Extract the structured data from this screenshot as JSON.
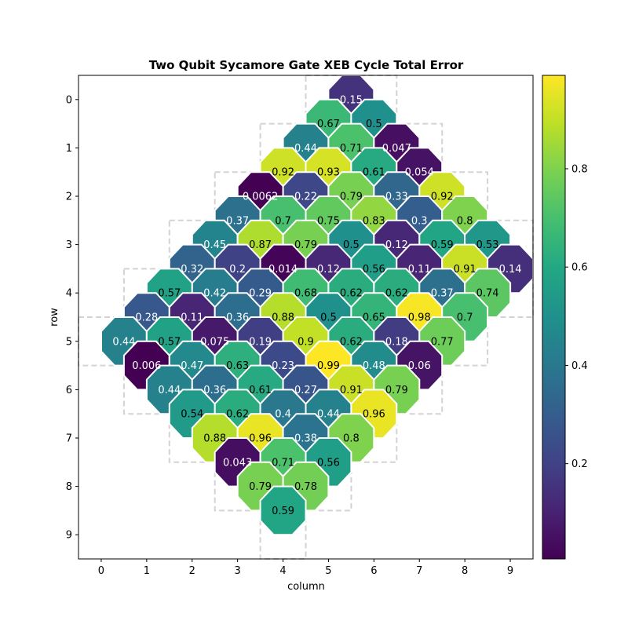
{
  "chart_data": {
    "type": "heatmap",
    "title": "Two Qubit Sycamore Gate XEB Cycle Total Error",
    "xlabel": "column",
    "ylabel": "row",
    "xlim": [
      -0.5,
      9.5
    ],
    "ylim": [
      9.5,
      -0.5
    ],
    "xticks": [
      "0",
      "1",
      "2",
      "3",
      "4",
      "5",
      "6",
      "7",
      "8",
      "9"
    ],
    "yticks": [
      "0",
      "1",
      "2",
      "3",
      "4",
      "5",
      "6",
      "7",
      "8",
      "9"
    ],
    "colormap": "viridis",
    "colorbar": {
      "range": [
        0.0062,
        0.99
      ],
      "ticks": [
        {
          "value": 0.2,
          "label": "0.2"
        },
        {
          "value": 0.4,
          "label": "0.4"
        },
        {
          "value": 0.6,
          "label": "0.6"
        },
        {
          "value": 0.8,
          "label": "0.8"
        }
      ]
    },
    "grid_outline": {
      "color": "#d3d3d3",
      "qubits": [
        [
          0,
          5
        ],
        [
          0,
          6
        ],
        [
          1,
          4
        ],
        [
          1,
          5
        ],
        [
          1,
          6
        ],
        [
          1,
          7
        ],
        [
          2,
          3
        ],
        [
          2,
          4
        ],
        [
          2,
          5
        ],
        [
          2,
          6
        ],
        [
          2,
          7
        ],
        [
          2,
          8
        ],
        [
          3,
          2
        ],
        [
          3,
          3
        ],
        [
          3,
          4
        ],
        [
          3,
          5
        ],
        [
          3,
          6
        ],
        [
          3,
          7
        ],
        [
          3,
          8
        ],
        [
          3,
          9
        ],
        [
          4,
          1
        ],
        [
          4,
          2
        ],
        [
          4,
          3
        ],
        [
          4,
          4
        ],
        [
          4,
          5
        ],
        [
          4,
          6
        ],
        [
          4,
          7
        ],
        [
          4,
          8
        ],
        [
          4,
          9
        ],
        [
          5,
          0
        ],
        [
          5,
          1
        ],
        [
          5,
          2
        ],
        [
          5,
          3
        ],
        [
          5,
          4
        ],
        [
          5,
          5
        ],
        [
          5,
          6
        ],
        [
          5,
          7
        ],
        [
          5,
          8
        ],
        [
          6,
          1
        ],
        [
          6,
          2
        ],
        [
          6,
          3
        ],
        [
          6,
          4
        ],
        [
          6,
          5
        ],
        [
          6,
          6
        ],
        [
          6,
          7
        ],
        [
          7,
          2
        ],
        [
          7,
          3
        ],
        [
          7,
          4
        ],
        [
          7,
          5
        ],
        [
          7,
          6
        ],
        [
          8,
          3
        ],
        [
          8,
          4
        ],
        [
          8,
          5
        ],
        [
          9,
          4
        ]
      ]
    },
    "pairs": [
      {
        "r": 0.0,
        "c": 5.5,
        "v": 0.15,
        "label": "0.15"
      },
      {
        "r": 0.5,
        "c": 5.0,
        "v": 0.67,
        "label": "0.67"
      },
      {
        "r": 0.5,
        "c": 6.0,
        "v": 0.5,
        "label": "0.5"
      },
      {
        "r": 1.0,
        "c": 4.5,
        "v": 0.44,
        "label": "0.44"
      },
      {
        "r": 1.0,
        "c": 5.5,
        "v": 0.71,
        "label": "0.71"
      },
      {
        "r": 1.0,
        "c": 6.5,
        "v": 0.047,
        "label": "0.047"
      },
      {
        "r": 1.5,
        "c": 4.0,
        "v": 0.92,
        "label": "0.92"
      },
      {
        "r": 1.5,
        "c": 5.0,
        "v": 0.93,
        "label": "0.93"
      },
      {
        "r": 1.5,
        "c": 6.0,
        "v": 0.61,
        "label": "0.61"
      },
      {
        "r": 1.5,
        "c": 7.0,
        "v": 0.054,
        "label": "0.054"
      },
      {
        "r": 2.0,
        "c": 3.5,
        "v": 0.0062,
        "label": "0.0062"
      },
      {
        "r": 2.0,
        "c": 4.5,
        "v": 0.22,
        "label": "0.22"
      },
      {
        "r": 2.0,
        "c": 5.5,
        "v": 0.79,
        "label": "0.79"
      },
      {
        "r": 2.0,
        "c": 6.5,
        "v": 0.33,
        "label": "0.33"
      },
      {
        "r": 2.0,
        "c": 7.5,
        "v": 0.92,
        "label": "0.92"
      },
      {
        "r": 2.5,
        "c": 3.0,
        "v": 0.37,
        "label": "0.37"
      },
      {
        "r": 2.5,
        "c": 4.0,
        "v": 0.7,
        "label": "0.7"
      },
      {
        "r": 2.5,
        "c": 5.0,
        "v": 0.75,
        "label": "0.75"
      },
      {
        "r": 2.5,
        "c": 6.0,
        "v": 0.83,
        "label": "0.83"
      },
      {
        "r": 2.5,
        "c": 7.0,
        "v": 0.3,
        "label": "0.3"
      },
      {
        "r": 2.5,
        "c": 8.0,
        "v": 0.8,
        "label": "0.8"
      },
      {
        "r": 3.0,
        "c": 2.5,
        "v": 0.45,
        "label": "0.45"
      },
      {
        "r": 3.0,
        "c": 3.5,
        "v": 0.87,
        "label": "0.87"
      },
      {
        "r": 3.0,
        "c": 4.5,
        "v": 0.79,
        "label": "0.79"
      },
      {
        "r": 3.0,
        "c": 5.5,
        "v": 0.5,
        "label": "0.5"
      },
      {
        "r": 3.0,
        "c": 6.5,
        "v": 0.12,
        "label": "0.12"
      },
      {
        "r": 3.0,
        "c": 7.5,
        "v": 0.59,
        "label": "0.59"
      },
      {
        "r": 3.0,
        "c": 8.5,
        "v": 0.53,
        "label": "0.53"
      },
      {
        "r": 3.5,
        "c": 2.0,
        "v": 0.32,
        "label": "0.32"
      },
      {
        "r": 3.5,
        "c": 3.0,
        "v": 0.2,
        "label": "0.2"
      },
      {
        "r": 3.5,
        "c": 4.0,
        "v": 0.014,
        "label": "0.014"
      },
      {
        "r": 3.5,
        "c": 5.0,
        "v": 0.12,
        "label": "0.12"
      },
      {
        "r": 3.5,
        "c": 6.0,
        "v": 0.56,
        "label": "0.56"
      },
      {
        "r": 3.5,
        "c": 7.0,
        "v": 0.11,
        "label": "0.11"
      },
      {
        "r": 3.5,
        "c": 8.0,
        "v": 0.91,
        "label": "0.91"
      },
      {
        "r": 3.5,
        "c": 9.0,
        "v": 0.14,
        "label": "0.14"
      },
      {
        "r": 4.0,
        "c": 1.5,
        "v": 0.57,
        "label": "0.57"
      },
      {
        "r": 4.0,
        "c": 2.5,
        "v": 0.42,
        "label": "0.42"
      },
      {
        "r": 4.0,
        "c": 3.5,
        "v": 0.29,
        "label": "0.29"
      },
      {
        "r": 4.0,
        "c": 4.5,
        "v": 0.68,
        "label": "0.68"
      },
      {
        "r": 4.0,
        "c": 5.5,
        "v": 0.62,
        "label": "0.62"
      },
      {
        "r": 4.0,
        "c": 6.5,
        "v": 0.62,
        "label": "0.62"
      },
      {
        "r": 4.0,
        "c": 7.5,
        "v": 0.37,
        "label": "0.37"
      },
      {
        "r": 4.0,
        "c": 8.5,
        "v": 0.74,
        "label": "0.74"
      },
      {
        "r": 4.5,
        "c": 1.0,
        "v": 0.28,
        "label": "0.28"
      },
      {
        "r": 4.5,
        "c": 2.0,
        "v": 0.11,
        "label": "0.11"
      },
      {
        "r": 4.5,
        "c": 3.0,
        "v": 0.36,
        "label": "0.36"
      },
      {
        "r": 4.5,
        "c": 4.0,
        "v": 0.88,
        "label": "0.88"
      },
      {
        "r": 4.5,
        "c": 5.0,
        "v": 0.5,
        "label": "0.5"
      },
      {
        "r": 4.5,
        "c": 6.0,
        "v": 0.65,
        "label": "0.65"
      },
      {
        "r": 4.5,
        "c": 7.0,
        "v": 0.98,
        "label": "0.98"
      },
      {
        "r": 4.5,
        "c": 8.0,
        "v": 0.7,
        "label": "0.7"
      },
      {
        "r": 5.0,
        "c": 0.5,
        "v": 0.44,
        "label": "0.44"
      },
      {
        "r": 5.0,
        "c": 1.5,
        "v": 0.57,
        "label": "0.57"
      },
      {
        "r": 5.0,
        "c": 2.5,
        "v": 0.075,
        "label": "0.075"
      },
      {
        "r": 5.0,
        "c": 3.5,
        "v": 0.19,
        "label": "0.19"
      },
      {
        "r": 5.0,
        "c": 4.5,
        "v": 0.9,
        "label": "0.9"
      },
      {
        "r": 5.0,
        "c": 5.5,
        "v": 0.62,
        "label": "0.62"
      },
      {
        "r": 5.0,
        "c": 6.5,
        "v": 0.18,
        "label": "0.18"
      },
      {
        "r": 5.0,
        "c": 7.5,
        "v": 0.77,
        "label": "0.77"
      },
      {
        "r": 5.5,
        "c": 1.0,
        "v": 0.006,
        "label": "0.006"
      },
      {
        "r": 5.5,
        "c": 2.0,
        "v": 0.47,
        "label": "0.47"
      },
      {
        "r": 5.5,
        "c": 3.0,
        "v": 0.63,
        "label": "0.63"
      },
      {
        "r": 5.5,
        "c": 4.0,
        "v": 0.23,
        "label": "0.23"
      },
      {
        "r": 5.5,
        "c": 5.0,
        "v": 0.99,
        "label": "0.99"
      },
      {
        "r": 5.5,
        "c": 6.0,
        "v": 0.48,
        "label": "0.48"
      },
      {
        "r": 5.5,
        "c": 7.0,
        "v": 0.06,
        "label": "0.06"
      },
      {
        "r": 6.0,
        "c": 1.5,
        "v": 0.44,
        "label": "0.44"
      },
      {
        "r": 6.0,
        "c": 2.5,
        "v": 0.36,
        "label": "0.36"
      },
      {
        "r": 6.0,
        "c": 3.5,
        "v": 0.61,
        "label": "0.61"
      },
      {
        "r": 6.0,
        "c": 4.5,
        "v": 0.27,
        "label": "0.27"
      },
      {
        "r": 6.0,
        "c": 5.5,
        "v": 0.91,
        "label": "0.91"
      },
      {
        "r": 6.0,
        "c": 6.5,
        "v": 0.79,
        "label": "0.79"
      },
      {
        "r": 6.5,
        "c": 2.0,
        "v": 0.54,
        "label": "0.54"
      },
      {
        "r": 6.5,
        "c": 3.0,
        "v": 0.62,
        "label": "0.62"
      },
      {
        "r": 6.5,
        "c": 4.0,
        "v": 0.4,
        "label": "0.4"
      },
      {
        "r": 6.5,
        "c": 5.0,
        "v": 0.44,
        "label": "0.44"
      },
      {
        "r": 6.5,
        "c": 6.0,
        "v": 0.96,
        "label": "0.96"
      },
      {
        "r": 7.0,
        "c": 2.5,
        "v": 0.88,
        "label": "0.88"
      },
      {
        "r": 7.0,
        "c": 3.5,
        "v": 0.96,
        "label": "0.96"
      },
      {
        "r": 7.0,
        "c": 4.5,
        "v": 0.38,
        "label": "0.38"
      },
      {
        "r": 7.0,
        "c": 5.5,
        "v": 0.8,
        "label": "0.8"
      },
      {
        "r": 7.5,
        "c": 3.0,
        "v": 0.043,
        "label": "0.043"
      },
      {
        "r": 7.5,
        "c": 4.0,
        "v": 0.71,
        "label": "0.71"
      },
      {
        "r": 7.5,
        "c": 5.0,
        "v": 0.56,
        "label": "0.56"
      },
      {
        "r": 8.0,
        "c": 3.5,
        "v": 0.79,
        "label": "0.79"
      },
      {
        "r": 8.0,
        "c": 4.5,
        "v": 0.78,
        "label": "0.78"
      },
      {
        "r": 8.5,
        "c": 4.0,
        "v": 0.59,
        "label": "0.59"
      }
    ]
  }
}
